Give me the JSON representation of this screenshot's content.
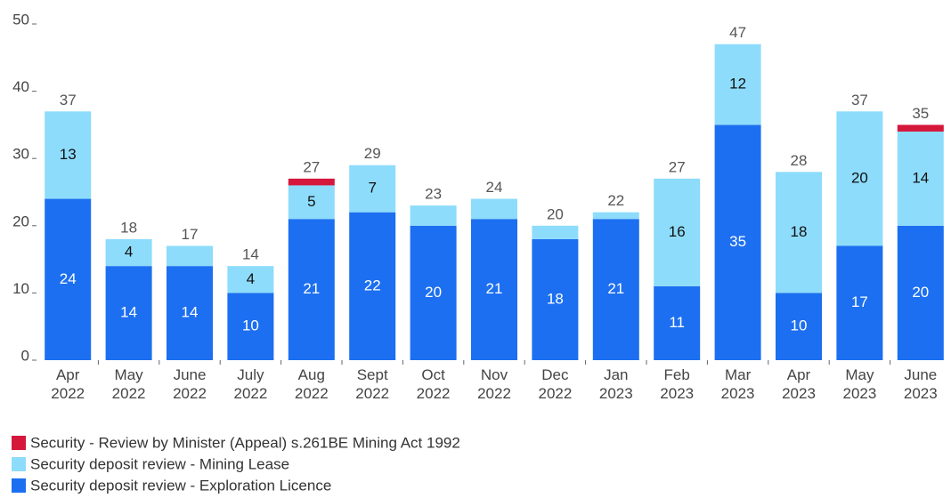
{
  "chart_data": {
    "type": "stacked_bar",
    "categories": [
      "Apr 2022",
      "May 2022",
      "June 2022",
      "July 2022",
      "Aug 2022",
      "Sept 2022",
      "Oct 2022",
      "Nov 2022",
      "Dec 2022",
      "Jan 2023",
      "Feb 2023",
      "Mar 2023",
      "Apr 2023",
      "May 2023",
      "June 2023"
    ],
    "series": [
      {
        "name": "Security deposit review - Exploration Licence",
        "color": "#1c6ff0",
        "label_color": "#ffffff",
        "values": [
          24,
          14,
          14,
          10,
          21,
          22,
          20,
          21,
          18,
          21,
          11,
          35,
          10,
          17,
          20
        ]
      },
      {
        "name": "Security deposit review - Mining Lease",
        "color": "#8ddcfb",
        "label_color": "#111111",
        "values": [
          13,
          4,
          3,
          4,
          5,
          7,
          3,
          3,
          2,
          1,
          16,
          12,
          18,
          20,
          14
        ]
      },
      {
        "name": "Security - Review by Minister (Appeal) s.261BE Mining Act 1992",
        "color": "#d5173c",
        "label_color": "#ffffff",
        "values": [
          0,
          0,
          0,
          0,
          1,
          0,
          0,
          0,
          0,
          0,
          0,
          0,
          0,
          0,
          1
        ]
      }
    ],
    "totals": [
      37,
      18,
      17,
      14,
      27,
      29,
      23,
      24,
      20,
      22,
      27,
      47,
      28,
      37,
      35
    ],
    "ylim": [
      0,
      50
    ],
    "yticks": [
      0,
      10,
      20,
      30,
      40,
      50
    ],
    "grid": false
  }
}
